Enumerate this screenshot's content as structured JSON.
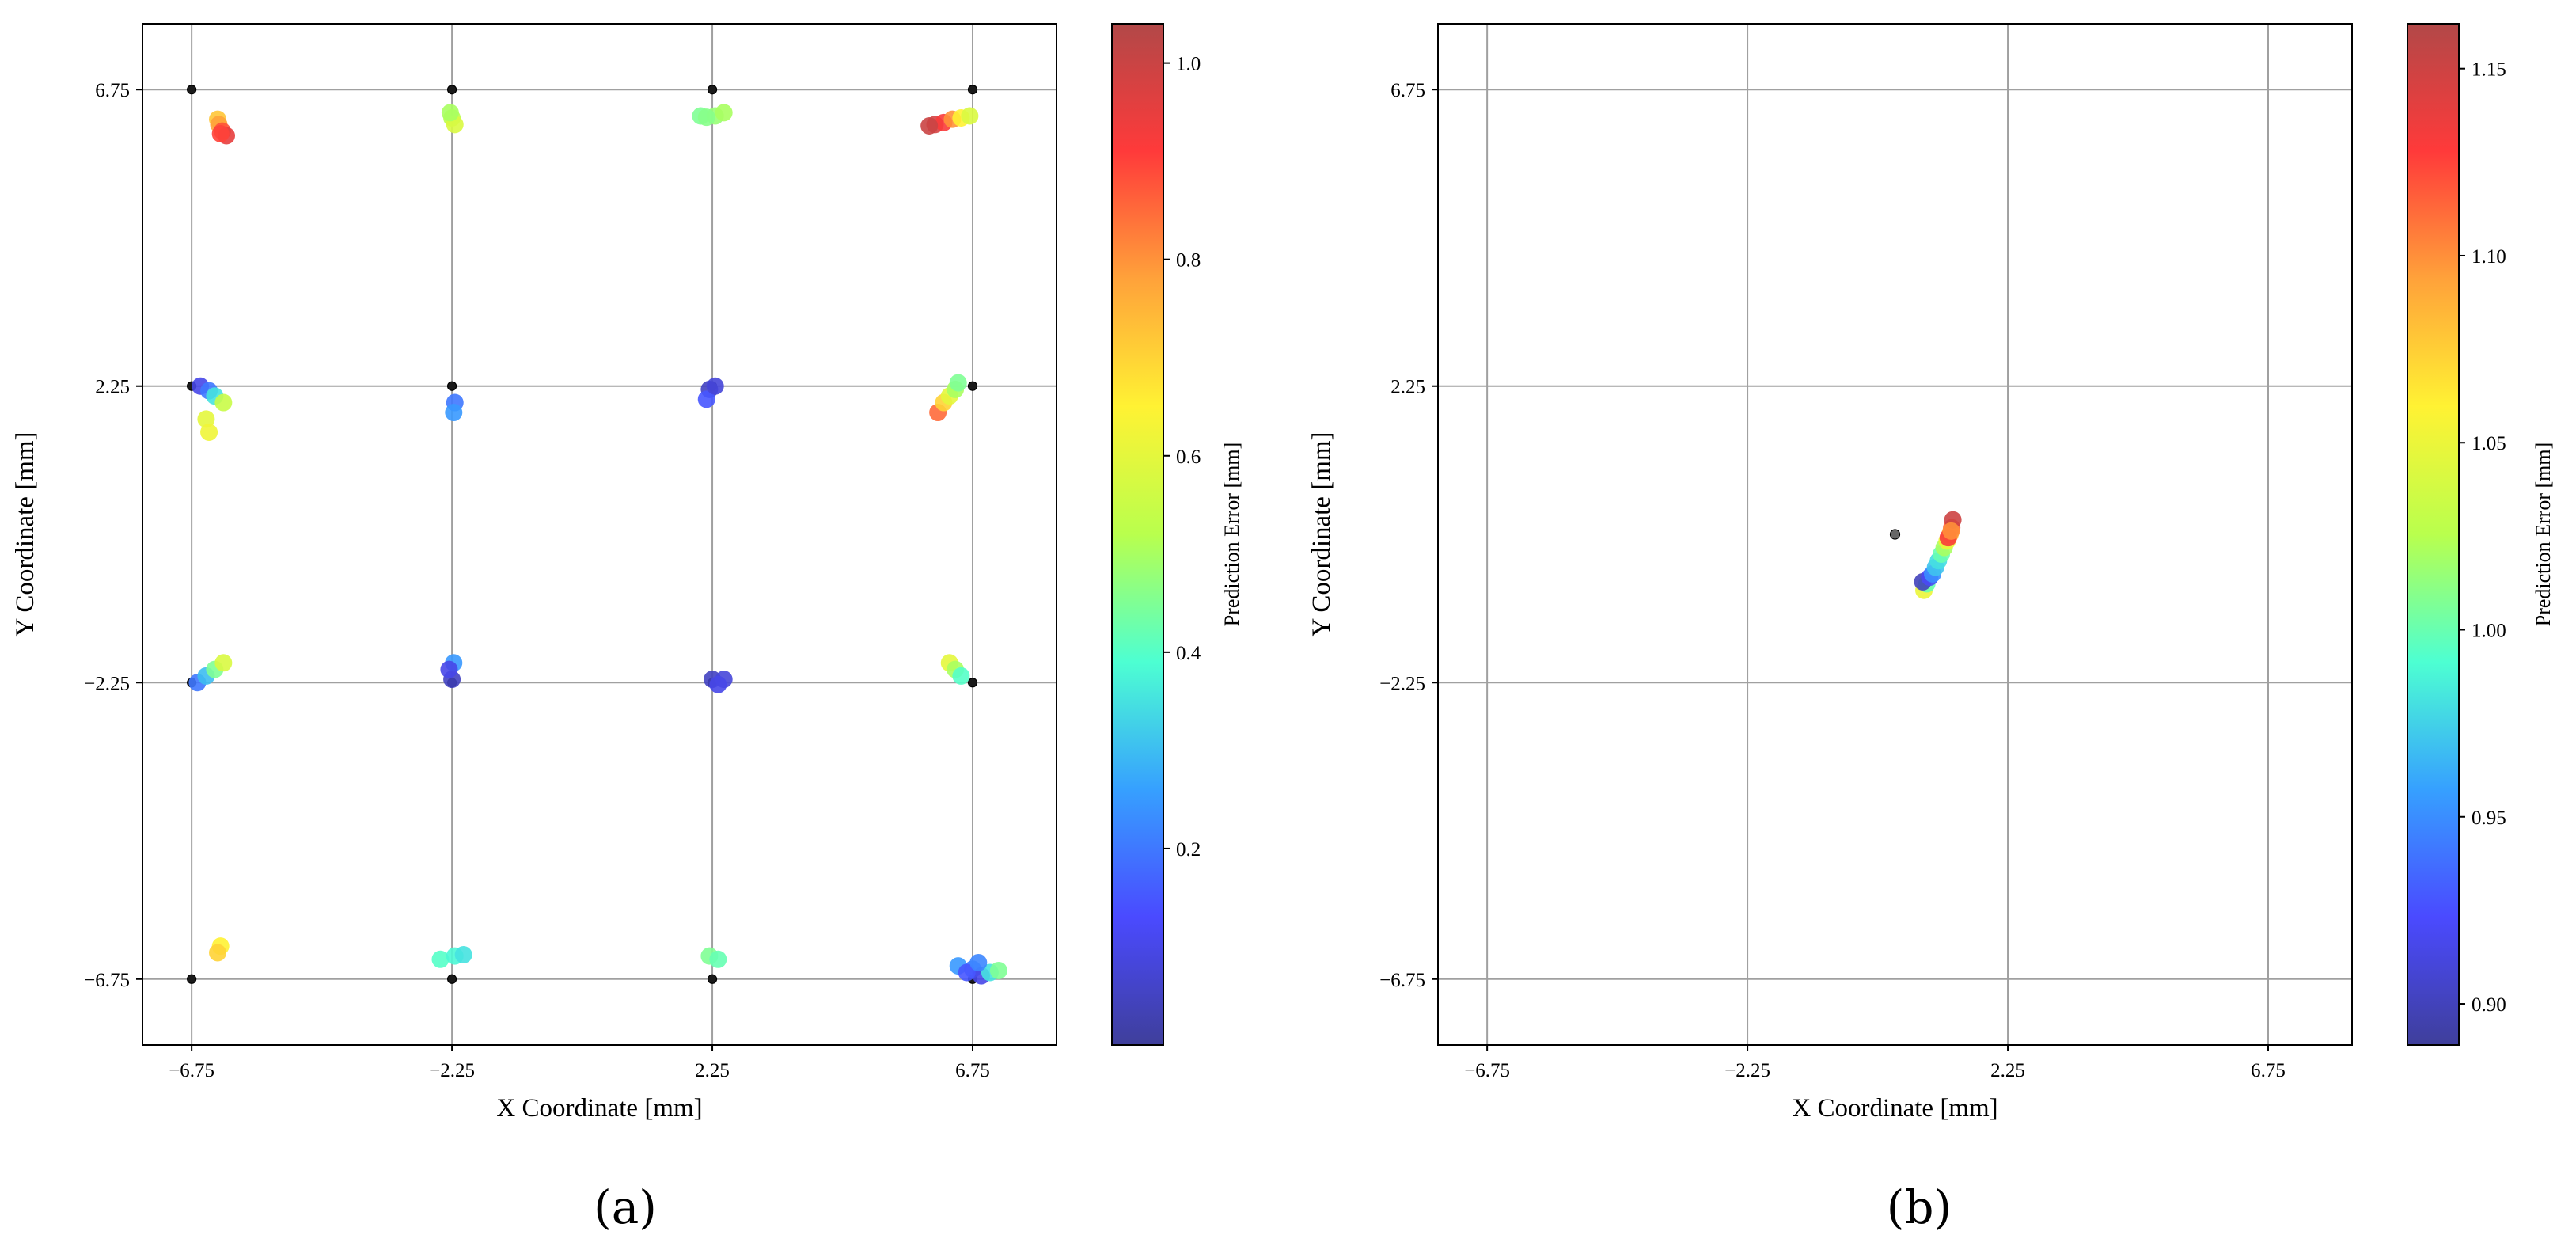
{
  "colormap": [
    "#3f3f9b",
    "#4a4aff",
    "#36a0ff",
    "#4dffd2",
    "#b9ff4d",
    "#fff233",
    "#ffa23a",
    "#ff3a3a",
    "#b24848"
  ],
  "colors": {
    "grid": "#a0a0a0",
    "axes": "#000000",
    "reference_point": "#1a1a1a"
  },
  "chart_data": [
    {
      "panel_label": "(a)",
      "type": "scatter",
      "xlabel": "X Coordinate [mm]",
      "ylabel": "Y Coordinate [mm]",
      "xlim": [
        -7.6,
        8.2
      ],
      "ylim": [
        -7.75,
        7.75
      ],
      "xticks": [
        -6.75,
        -2.25,
        2.25,
        6.75
      ],
      "yticks": [
        -6.75,
        -2.25,
        2.25,
        6.75
      ],
      "xtick_labels": [
        "−6.75",
        "−2.25",
        "2.25",
        "6.75"
      ],
      "ytick_labels": [
        "−6.75",
        "−2.25",
        "2.25",
        "6.75"
      ],
      "grid": true,
      "colorbar": {
        "label": "Prediction Error [mm]",
        "range": [
          0.0,
          1.04
        ],
        "ticks": [
          0.2,
          0.4,
          0.6,
          0.8,
          1.0
        ],
        "tick_labels": [
          "0.2",
          "0.4",
          "0.6",
          "0.8",
          "1.0"
        ]
      },
      "reference_points": [
        [
          -6.75,
          6.75
        ],
        [
          -2.25,
          6.75
        ],
        [
          2.25,
          6.75
        ],
        [
          6.75,
          6.75
        ],
        [
          -6.75,
          2.25
        ],
        [
          -2.25,
          2.25
        ],
        [
          2.25,
          2.25
        ],
        [
          6.75,
          2.25
        ],
        [
          -6.75,
          -2.25
        ],
        [
          -2.25,
          -2.25
        ],
        [
          2.25,
          -2.25
        ],
        [
          6.75,
          -2.25
        ],
        [
          -6.75,
          -6.75
        ],
        [
          -2.25,
          -6.75
        ],
        [
          2.25,
          -6.75
        ],
        [
          6.75,
          -6.75
        ]
      ],
      "predictions": [
        [
          -6.3,
          6.3,
          0.72
        ],
        [
          -6.28,
          6.22,
          0.78
        ],
        [
          -6.22,
          6.12,
          0.88
        ],
        [
          -6.15,
          6.05,
          0.95
        ],
        [
          -6.25,
          6.08,
          0.9
        ],
        [
          -2.25,
          6.32,
          0.52
        ],
        [
          -2.2,
          6.22,
          0.58
        ],
        [
          -2.28,
          6.4,
          0.5
        ],
        [
          2.05,
          6.35,
          0.45
        ],
        [
          2.3,
          6.35,
          0.48
        ],
        [
          2.45,
          6.4,
          0.5
        ],
        [
          2.15,
          6.33,
          0.46
        ],
        [
          6.1,
          6.22,
          0.98
        ],
        [
          6.25,
          6.25,
          0.92
        ],
        [
          6.4,
          6.3,
          0.8
        ],
        [
          6.55,
          6.32,
          0.65
        ],
        [
          6.7,
          6.35,
          0.58
        ],
        [
          6.0,
          6.2,
          1.0
        ],
        [
          -6.6,
          2.25,
          0.1
        ],
        [
          -6.45,
          2.18,
          0.2
        ],
        [
          -6.35,
          2.1,
          0.35
        ],
        [
          -6.2,
          2.0,
          0.55
        ],
        [
          -6.5,
          1.75,
          0.6
        ],
        [
          -6.45,
          1.55,
          0.62
        ],
        [
          -2.2,
          2.0,
          0.2
        ],
        [
          -2.22,
          1.85,
          0.25
        ],
        [
          2.2,
          2.2,
          0.05
        ],
        [
          2.15,
          2.05,
          0.15
        ],
        [
          2.3,
          2.25,
          0.08
        ],
        [
          6.15,
          1.85,
          0.85
        ],
        [
          6.25,
          2.0,
          0.7
        ],
        [
          6.35,
          2.1,
          0.6
        ],
        [
          6.45,
          2.2,
          0.5
        ],
        [
          6.5,
          2.3,
          0.45
        ],
        [
          -6.65,
          -2.25,
          0.2
        ],
        [
          -6.5,
          -2.15,
          0.3
        ],
        [
          -6.35,
          -2.05,
          0.45
        ],
        [
          -6.2,
          -1.95,
          0.58
        ],
        [
          -2.25,
          -2.2,
          0.05
        ],
        [
          -2.22,
          -1.95,
          0.25
        ],
        [
          -2.3,
          -2.05,
          0.1
        ],
        [
          2.25,
          -2.2,
          0.05
        ],
        [
          2.45,
          -2.2,
          0.08
        ],
        [
          2.35,
          -2.28,
          0.1
        ],
        [
          6.35,
          -1.95,
          0.6
        ],
        [
          6.45,
          -2.05,
          0.5
        ],
        [
          6.55,
          -2.15,
          0.4
        ],
        [
          -6.25,
          -6.25,
          0.65
        ],
        [
          -6.3,
          -6.35,
          0.7
        ],
        [
          -2.45,
          -6.45,
          0.4
        ],
        [
          -2.2,
          -6.4,
          0.38
        ],
        [
          -2.05,
          -6.38,
          0.35
        ],
        [
          2.2,
          -6.4,
          0.45
        ],
        [
          2.35,
          -6.45,
          0.42
        ],
        [
          6.5,
          -6.55,
          0.25
        ],
        [
          6.75,
          -6.6,
          0.2
        ],
        [
          6.9,
          -6.7,
          0.1
        ],
        [
          7.05,
          -6.65,
          0.35
        ],
        [
          7.2,
          -6.62,
          0.45
        ],
        [
          6.65,
          -6.65,
          0.15
        ],
        [
          6.85,
          -6.5,
          0.22
        ]
      ]
    },
    {
      "panel_label": "(b)",
      "type": "scatter",
      "xlabel": "X Coordinate [mm]",
      "ylabel": "Y Coordinate [mm]",
      "xlim": [
        -7.6,
        8.2
      ],
      "ylim": [
        -7.75,
        7.75
      ],
      "xticks": [
        -6.75,
        -2.25,
        2.25,
        6.75
      ],
      "yticks": [
        -6.75,
        -2.25,
        2.25,
        6.75
      ],
      "xtick_labels": [
        "−6.75",
        "−2.25",
        "2.25",
        "6.75"
      ],
      "ytick_labels": [
        "−6.75",
        "−2.25",
        "2.25",
        "6.75"
      ],
      "grid": true,
      "colorbar": {
        "label": "Prediction Error [mm]",
        "range": [
          0.889,
          1.162
        ],
        "ticks": [
          0.9,
          0.95,
          1.0,
          1.05,
          1.1,
          1.15
        ],
        "tick_labels": [
          "0.90",
          "0.95",
          "1.00",
          "1.05",
          "1.10",
          "1.15"
        ]
      },
      "reference_points": [
        [
          0.3,
          0.0
        ]
      ],
      "predictions": [
        [
          0.8,
          -0.85,
          1.05
        ],
        [
          0.85,
          -0.75,
          1.0
        ],
        [
          0.78,
          -0.72,
          0.9
        ],
        [
          0.9,
          -0.65,
          0.92
        ],
        [
          0.95,
          -0.6,
          0.95
        ],
        [
          1.0,
          -0.5,
          0.97
        ],
        [
          1.05,
          -0.4,
          0.98
        ],
        [
          1.1,
          -0.3,
          1.0
        ],
        [
          1.15,
          -0.2,
          1.02
        ],
        [
          1.2,
          -0.1,
          1.05
        ],
        [
          1.25,
          0.0,
          1.08
        ],
        [
          1.28,
          0.1,
          1.12
        ],
        [
          1.3,
          0.22,
          1.15
        ],
        [
          1.22,
          -0.05,
          1.13
        ],
        [
          1.27,
          0.05,
          1.1
        ]
      ]
    }
  ]
}
